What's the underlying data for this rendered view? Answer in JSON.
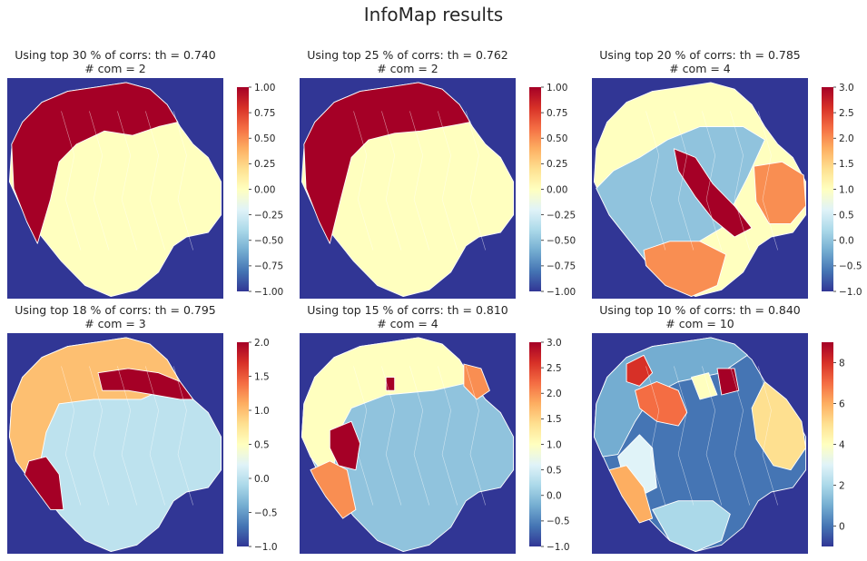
{
  "figure_title": "InfoMap results",
  "colors": {
    "background": "#333399",
    "boundary": "#ffffff",
    "colormap": "RdYlBu_r"
  },
  "chart_data": [
    {
      "type": "heatmap",
      "title_line1": "Using top 30 % of corrs: th = 0.740",
      "title_line2": "# com = 2",
      "colorbar": {
        "range": [
          -1.0,
          1.0
        ],
        "ticks": [
          -1.0,
          -0.75,
          -0.5,
          -0.25,
          0.0,
          0.25,
          0.5,
          0.75,
          1.0
        ],
        "tick_labels": [
          "−1.00",
          "−0.75",
          "−0.50",
          "−0.25",
          "0.00",
          "0.25",
          "0.50",
          "0.75",
          "1.00"
        ]
      },
      "communities": [
        {
          "id": 0,
          "region": "main body"
        },
        {
          "id": 1,
          "region": "upper-left rim"
        }
      ],
      "background_value": -1
    },
    {
      "type": "heatmap",
      "title_line1": "Using top 25 % of corrs: th = 0.762",
      "title_line2": "# com = 2",
      "colorbar": {
        "range": [
          -1.0,
          1.0
        ],
        "ticks": [
          -1.0,
          -0.75,
          -0.5,
          -0.25,
          0.0,
          0.25,
          0.5,
          0.75,
          1.0
        ],
        "tick_labels": [
          "−1.00",
          "−0.75",
          "−0.50",
          "−0.25",
          "0.00",
          "0.25",
          "0.50",
          "0.75",
          "1.00"
        ]
      },
      "communities": [
        {
          "id": 0,
          "region": "main body"
        },
        {
          "id": 1,
          "region": "upper-left rim"
        }
      ],
      "background_value": -1
    },
    {
      "type": "heatmap",
      "title_line1": "Using top 20 % of corrs: th = 0.785",
      "title_line2": "# com = 4",
      "colorbar": {
        "range": [
          -1.0,
          3.0
        ],
        "ticks": [
          -1.0,
          -0.5,
          0.0,
          0.5,
          1.0,
          1.5,
          2.0,
          2.5,
          3.0
        ],
        "tick_labels": [
          "−1.0",
          "−0.5",
          "0.0",
          "0.5",
          "1.0",
          "1.5",
          "2.0",
          "2.5",
          "3.0"
        ]
      },
      "communities": [
        {
          "id": 0,
          "region": "left and center"
        },
        {
          "id": 1,
          "region": "top"
        },
        {
          "id": 2,
          "region": "right lobe and bottom"
        },
        {
          "id": 3,
          "region": "center diagonal band"
        }
      ],
      "background_value": -1
    },
    {
      "type": "heatmap",
      "title_line1": "Using top 18 % of corrs: th = 0.795",
      "title_line2": "# com = 3",
      "colorbar": {
        "range": [
          -1.0,
          2.0
        ],
        "ticks": [
          -1.0,
          -0.5,
          0.0,
          0.5,
          1.0,
          1.5,
          2.0
        ],
        "tick_labels": [
          "−1.0",
          "−0.5",
          "0.0",
          "0.5",
          "1.0",
          "1.5",
          "2.0"
        ]
      },
      "communities": [
        {
          "id": 0,
          "region": "main body"
        },
        {
          "id": 1,
          "region": "top and left rim"
        },
        {
          "id": 2,
          "region": "upper-right and lower-left patches"
        }
      ],
      "background_value": -1
    },
    {
      "type": "heatmap",
      "title_line1": "Using top 15 % of corrs: th = 0.810",
      "title_line2": "# com = 4",
      "colorbar": {
        "range": [
          -1.0,
          3.0
        ],
        "ticks": [
          -1.0,
          -0.5,
          0.0,
          0.5,
          1.0,
          1.5,
          2.0,
          2.5,
          3.0
        ],
        "tick_labels": [
          "−1.0",
          "−0.5",
          "0.0",
          "0.5",
          "1.0",
          "1.5",
          "2.0",
          "2.5",
          "3.0"
        ]
      },
      "communities": [
        {
          "id": 0,
          "region": "main body"
        },
        {
          "id": 1,
          "region": "top and left"
        },
        {
          "id": 2,
          "region": "bottom-left and top-right patches"
        },
        {
          "id": 3,
          "region": "small left patch"
        }
      ],
      "background_value": -1
    },
    {
      "type": "heatmap",
      "title_line1": "Using top 10 % of corrs: th = 0.840",
      "title_line2": "# com = 10",
      "colorbar": {
        "range": [
          -1,
          9
        ],
        "ticks": [
          0,
          2,
          4,
          6,
          8
        ],
        "tick_labels": [
          "0",
          "2",
          "4",
          "6",
          "8"
        ]
      },
      "communities": [
        {
          "id": 0,
          "region": "center"
        },
        {
          "id": 1,
          "region": "left and top"
        },
        {
          "id": 2,
          "region": "bottom"
        },
        {
          "id": 3,
          "region": "left strip"
        },
        {
          "id": 4,
          "region": "small center"
        },
        {
          "id": 5,
          "region": "right"
        },
        {
          "id": 6,
          "region": "bottom-left"
        },
        {
          "id": 7,
          "region": "upper-left"
        },
        {
          "id": 8,
          "region": "upper-left small"
        },
        {
          "id": 9,
          "region": "top small"
        }
      ],
      "background_value": -1
    }
  ]
}
